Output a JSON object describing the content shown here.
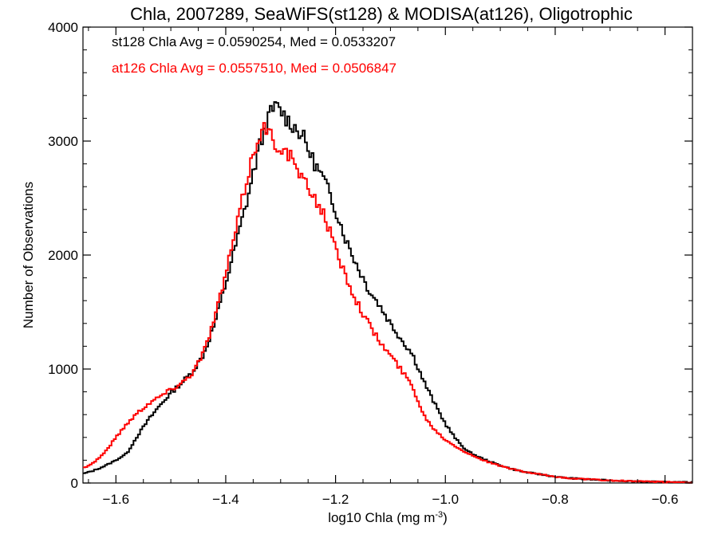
{
  "chart_data": {
    "type": "line",
    "title": "Chla, 2007289, SeaWiFS(st128) & MODISA(at126), Oligotrophic",
    "xlabel": "log10 Chla (mg m",
    "xlabel_sup": "-3",
    "xlabel_end": ")",
    "ylabel": "Number of Observations",
    "xlim": [
      -1.66,
      -0.55
    ],
    "ylim": [
      0,
      4000
    ],
    "x_ticks": [
      -1.6,
      -1.4,
      -1.2,
      -1.0,
      -0.8,
      -0.6
    ],
    "x_tick_labels": [
      "−1.6",
      "−1.4",
      "−1.2",
      "−1.0",
      "−0.8",
      "−0.6"
    ],
    "y_ticks": [
      0,
      1000,
      2000,
      3000,
      4000
    ],
    "y_tick_labels": [
      "0",
      "1000",
      "2000",
      "3000",
      "4000"
    ],
    "legend_position": "top-left",
    "series": [
      {
        "color": "#000000",
        "annotation": "st128 Chla Avg = 0.0590254, Med = 0.0533207",
        "points": [
          [
            -1.66,
            80
          ],
          [
            -1.64,
            110
          ],
          [
            -1.62,
            150
          ],
          [
            -1.6,
            200
          ],
          [
            -1.58,
            260
          ],
          [
            -1.56,
            420
          ],
          [
            -1.54,
            560
          ],
          [
            -1.52,
            680
          ],
          [
            -1.5,
            790
          ],
          [
            -1.48,
            880
          ],
          [
            -1.46,
            980
          ],
          [
            -1.44,
            1130
          ],
          [
            -1.42,
            1400
          ],
          [
            -1.4,
            1750
          ],
          [
            -1.38,
            2120
          ],
          [
            -1.36,
            2500
          ],
          [
            -1.34,
            2930
          ],
          [
            -1.32,
            3230
          ],
          [
            -1.31,
            3300
          ],
          [
            -1.3,
            3270
          ],
          [
            -1.29,
            3200
          ],
          [
            -1.28,
            3150
          ],
          [
            -1.27,
            3100
          ],
          [
            -1.26,
            3050
          ],
          [
            -1.25,
            2930
          ],
          [
            -1.24,
            2820
          ],
          [
            -1.22,
            2650
          ],
          [
            -1.2,
            2400
          ],
          [
            -1.18,
            2120
          ],
          [
            -1.16,
            1900
          ],
          [
            -1.14,
            1700
          ],
          [
            -1.12,
            1560
          ],
          [
            -1.1,
            1400
          ],
          [
            -1.08,
            1260
          ],
          [
            -1.06,
            1130
          ],
          [
            -1.04,
            900
          ],
          [
            -1.02,
            700
          ],
          [
            -1.0,
            520
          ],
          [
            -0.98,
            380
          ],
          [
            -0.96,
            280
          ],
          [
            -0.94,
            230
          ],
          [
            -0.92,
            190
          ],
          [
            -0.9,
            155
          ],
          [
            -0.88,
            125
          ],
          [
            -0.86,
            100
          ],
          [
            -0.84,
            85
          ],
          [
            -0.82,
            70
          ],
          [
            -0.8,
            55
          ],
          [
            -0.78,
            45
          ],
          [
            -0.76,
            38
          ],
          [
            -0.74,
            32
          ],
          [
            -0.72,
            27
          ],
          [
            -0.7,
            22
          ],
          [
            -0.68,
            19
          ],
          [
            -0.66,
            16
          ],
          [
            -0.64,
            13
          ],
          [
            -0.62,
            11
          ],
          [
            -0.6,
            9
          ],
          [
            -0.58,
            8
          ],
          [
            -0.56,
            6
          ]
        ]
      },
      {
        "color": "#ff0000",
        "annotation": "at126 Chla Avg = 0.0557510, Med = 0.0506847",
        "points": [
          [
            -1.66,
            130
          ],
          [
            -1.64,
            180
          ],
          [
            -1.62,
            270
          ],
          [
            -1.6,
            400
          ],
          [
            -1.58,
            520
          ],
          [
            -1.56,
            620
          ],
          [
            -1.54,
            700
          ],
          [
            -1.52,
            760
          ],
          [
            -1.5,
            820
          ],
          [
            -1.48,
            880
          ],
          [
            -1.46,
            970
          ],
          [
            -1.44,
            1150
          ],
          [
            -1.42,
            1450
          ],
          [
            -1.4,
            1830
          ],
          [
            -1.38,
            2250
          ],
          [
            -1.36,
            2700
          ],
          [
            -1.34,
            3050
          ],
          [
            -1.33,
            3120
          ],
          [
            -1.32,
            3060
          ],
          [
            -1.31,
            2980
          ],
          [
            -1.3,
            2950
          ],
          [
            -1.29,
            2900
          ],
          [
            -1.28,
            2850
          ],
          [
            -1.27,
            2750
          ],
          [
            -1.26,
            2650
          ],
          [
            -1.24,
            2520
          ],
          [
            -1.22,
            2350
          ],
          [
            -1.2,
            2050
          ],
          [
            -1.18,
            1800
          ],
          [
            -1.16,
            1580
          ],
          [
            -1.14,
            1400
          ],
          [
            -1.12,
            1240
          ],
          [
            -1.1,
            1120
          ],
          [
            -1.08,
            990
          ],
          [
            -1.06,
            850
          ],
          [
            -1.04,
            600
          ],
          [
            -1.02,
            470
          ],
          [
            -1.0,
            380
          ],
          [
            -0.98,
            320
          ],
          [
            -0.96,
            260
          ],
          [
            -0.94,
            220
          ],
          [
            -0.92,
            180
          ],
          [
            -0.9,
            150
          ],
          [
            -0.88,
            125
          ],
          [
            -0.86,
            100
          ],
          [
            -0.84,
            85
          ],
          [
            -0.82,
            70
          ],
          [
            -0.8,
            55
          ],
          [
            -0.78,
            45
          ],
          [
            -0.76,
            38
          ],
          [
            -0.74,
            32
          ],
          [
            -0.72,
            27
          ],
          [
            -0.7,
            22
          ],
          [
            -0.68,
            19
          ],
          [
            -0.66,
            16
          ],
          [
            -0.64,
            13
          ],
          [
            -0.62,
            11
          ],
          [
            -0.6,
            9
          ],
          [
            -0.58,
            8
          ],
          [
            -0.56,
            6
          ]
        ]
      }
    ]
  }
}
